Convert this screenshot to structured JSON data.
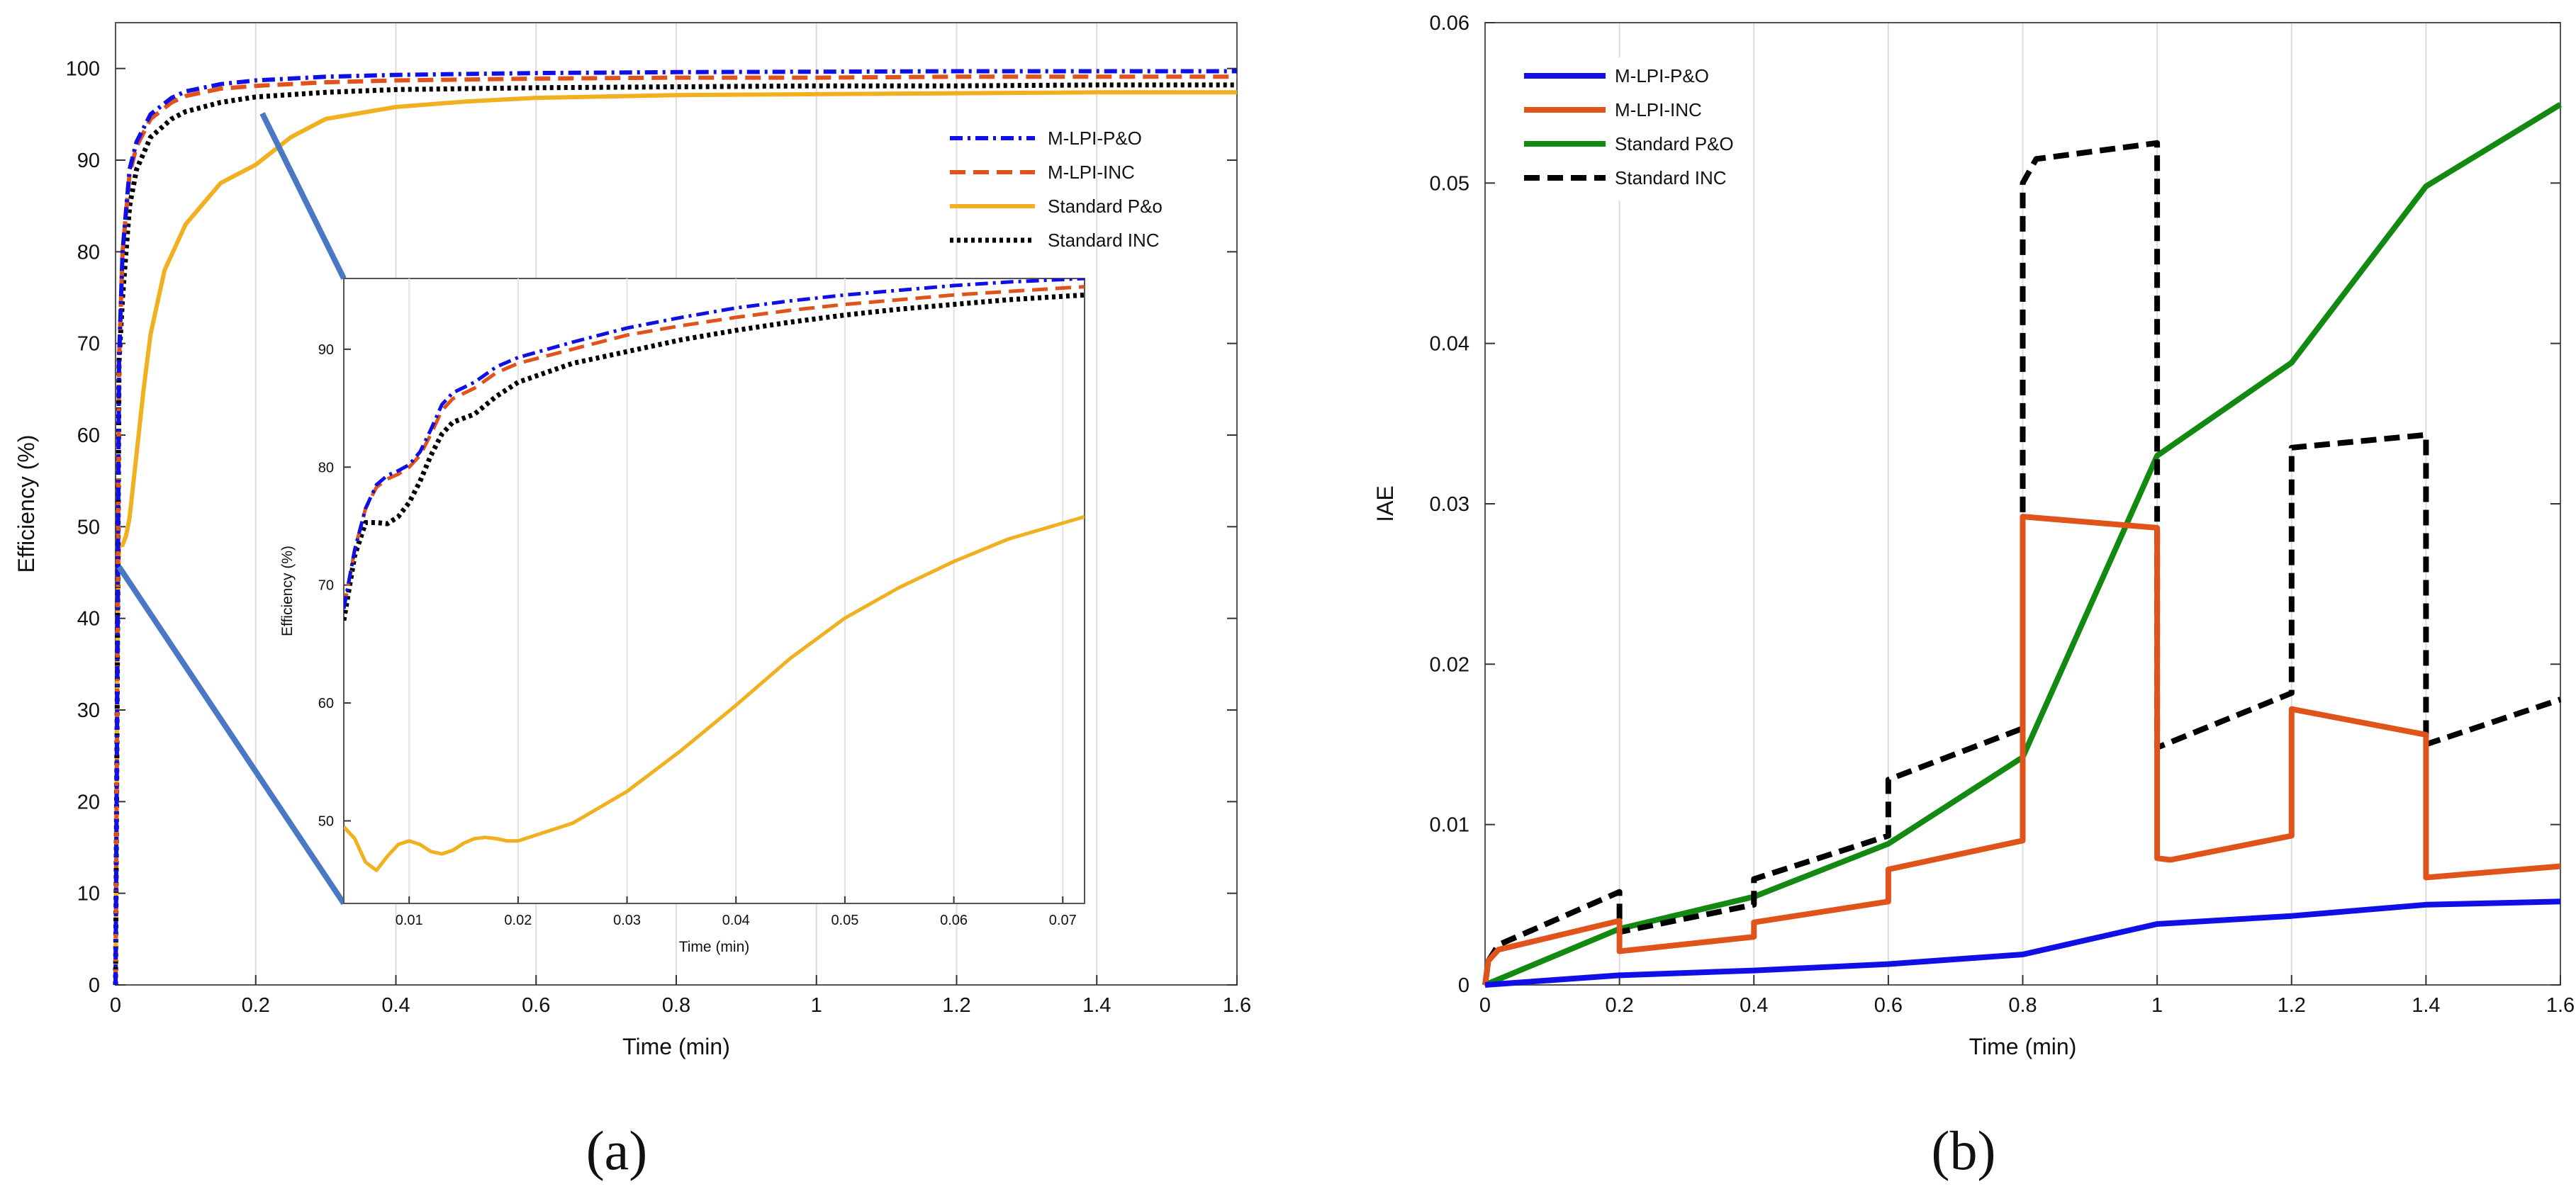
{
  "colors": {
    "mlpi_po": "#1010e6",
    "mlpi_inc": "#e0531b",
    "std_po_a": "#f0b020",
    "std_po_b": "#128a12",
    "std_inc": "#000000",
    "zoom_lines": "#4a78c4"
  },
  "chart_data": [
    {
      "type": "line",
      "caption": "(a)",
      "xlabel": "Time (min)",
      "ylabel": "Efficiency (%)",
      "xlim": [
        0,
        1.6
      ],
      "ylim": [
        0,
        105
      ],
      "xticks": [
        0,
        0.2,
        0.4,
        0.6,
        0.8,
        1,
        1.2,
        1.4,
        1.6
      ],
      "xtick_labels": [
        "0",
        "0.2",
        "0.4",
        "0.6",
        "0.8",
        "1",
        "1.2",
        "1.4",
        "1.6"
      ],
      "yticks": [
        0,
        10,
        20,
        30,
        40,
        50,
        60,
        70,
        80,
        90,
        100
      ],
      "ytick_labels": [
        "0",
        "10",
        "20",
        "30",
        "40",
        "50",
        "60",
        "70",
        "80",
        "90",
        "100"
      ],
      "legend": [
        "M-LPI-P&O",
        "M-LPI-INC",
        "Standard P&o",
        "Standard INC"
      ],
      "series": [
        {
          "name": "M-LPI-P&O",
          "style": "dashdot",
          "x": [
            0,
            0.003,
            0.005,
            0.01,
            0.02,
            0.03,
            0.05,
            0.08,
            0.1,
            0.15,
            0.2,
            0.3,
            0.4,
            0.6,
            0.8,
            1,
            1.2,
            1.4,
            1.6
          ],
          "y": [
            0,
            40,
            68,
            80,
            89,
            92,
            95,
            96.8,
            97.5,
            98.3,
            98.7,
            99.1,
            99.3,
            99.5,
            99.6,
            99.65,
            99.7,
            99.7,
            99.7
          ]
        },
        {
          "name": "M-LPI-INC",
          "style": "dashed",
          "x": [
            0,
            0.003,
            0.005,
            0.01,
            0.02,
            0.03,
            0.05,
            0.08,
            0.1,
            0.15,
            0.2,
            0.3,
            0.4,
            0.6,
            0.8,
            1,
            1.2,
            1.4,
            1.6
          ],
          "y": [
            0,
            40,
            68,
            80,
            88.5,
            91.5,
            94.5,
            96.3,
            97,
            97.8,
            98.1,
            98.5,
            98.7,
            98.9,
            99,
            99,
            99.1,
            99.1,
            99.1
          ]
        },
        {
          "name": "Standard P&o",
          "style": "solid",
          "x": [
            0,
            0.003,
            0.005,
            0.01,
            0.015,
            0.02,
            0.03,
            0.04,
            0.05,
            0.07,
            0.1,
            0.15,
            0.2,
            0.25,
            0.3,
            0.4,
            0.5,
            0.6,
            0.8,
            1,
            1.2,
            1.4,
            1.6
          ],
          "y": [
            0,
            40,
            48,
            48,
            49,
            51,
            58,
            65,
            71,
            78,
            83,
            87.5,
            89.5,
            92.5,
            94.5,
            95.8,
            96.4,
            96.8,
            97.1,
            97.2,
            97.3,
            97.4,
            97.4
          ]
        },
        {
          "name": "Standard INC",
          "style": "dotted",
          "x": [
            0,
            0.003,
            0.005,
            0.01,
            0.02,
            0.03,
            0.05,
            0.08,
            0.1,
            0.15,
            0.2,
            0.3,
            0.4,
            0.6,
            0.8,
            1,
            1.2,
            1.4,
            1.6
          ],
          "y": [
            0,
            40,
            68,
            75,
            85,
            89,
            92.5,
            94.5,
            95.3,
            96.3,
            96.9,
            97.4,
            97.7,
            97.9,
            98,
            98.1,
            98.1,
            98.2,
            98.2
          ]
        }
      ],
      "inset": {
        "xlabel": "Time (min)",
        "ylabel": "Efficiency (%)",
        "xlim": [
          0.004,
          0.072
        ],
        "ylim": [
          43,
          96
        ],
        "xticks": [
          0.01,
          0.02,
          0.03,
          0.04,
          0.05,
          0.06,
          0.07
        ],
        "xtick_labels": [
          "0.01",
          "0.02",
          "0.03",
          "0.04",
          "0.05",
          "0.06",
          "0.07"
        ],
        "yticks": [
          50,
          60,
          70,
          80,
          90
        ],
        "ytick_labels": [
          "50",
          "60",
          "70",
          "80",
          "90"
        ],
        "series": [
          {
            "name": "M-LPI-P&O",
            "x": [
              0.004,
              0.005,
              0.006,
              0.007,
              0.008,
              0.009,
              0.01,
              0.011,
              0.012,
              0.013,
              0.014,
              0.016,
              0.018,
              0.02,
              0.025,
              0.03,
              0.035,
              0.04,
              0.045,
              0.05,
              0.055,
              0.06,
              0.065,
              0.072
            ],
            "y": [
              68,
              73,
              76.5,
              78.5,
              79.3,
              79.7,
              80.2,
              81.3,
              83.2,
              85.3,
              86.3,
              87.2,
              88.5,
              89.3,
              90.6,
              91.8,
              92.7,
              93.5,
              94.1,
              94.6,
              95,
              95.4,
              95.7,
              96
            ]
          },
          {
            "name": "M-LPI-INC",
            "x": [
              0.004,
              0.005,
              0.006,
              0.007,
              0.008,
              0.009,
              0.01,
              0.011,
              0.012,
              0.013,
              0.014,
              0.016,
              0.018,
              0.02,
              0.025,
              0.03,
              0.035,
              0.04,
              0.045,
              0.05,
              0.055,
              0.06,
              0.065,
              0.072
            ],
            "y": [
              68,
              73,
              76.5,
              78.3,
              79,
              79.4,
              80,
              81,
              82.8,
              84.8,
              85.8,
              86.7,
              88,
              88.8,
              90,
              91.2,
              92,
              92.7,
              93.3,
              93.8,
              94.2,
              94.6,
              94.9,
              95.3
            ]
          },
          {
            "name": "Standard P&o",
            "x": [
              0.004,
              0.005,
              0.006,
              0.007,
              0.008,
              0.009,
              0.01,
              0.011,
              0.012,
              0.013,
              0.014,
              0.015,
              0.016,
              0.017,
              0.018,
              0.019,
              0.02,
              0.022,
              0.025,
              0.03,
              0.035,
              0.04,
              0.045,
              0.05,
              0.055,
              0.06,
              0.065,
              0.072
            ],
            "y": [
              49.5,
              48.5,
              46.5,
              45.8,
              47,
              48,
              48.3,
              48,
              47.4,
              47.2,
              47.5,
              48.1,
              48.5,
              48.6,
              48.5,
              48.3,
              48.3,
              48.9,
              49.8,
              52.5,
              56,
              59.8,
              63.8,
              67.2,
              69.8,
              72,
              73.9,
              75.8
            ]
          },
          {
            "name": "Standard INC",
            "x": [
              0.004,
              0.005,
              0.006,
              0.007,
              0.008,
              0.009,
              0.01,
              0.011,
              0.012,
              0.013,
              0.014,
              0.016,
              0.018,
              0.02,
              0.025,
              0.03,
              0.035,
              0.04,
              0.045,
              0.05,
              0.055,
              0.06,
              0.065,
              0.072
            ],
            "y": [
              67,
              72.5,
              75.3,
              75.3,
              75.2,
              75.8,
              77,
              78.8,
              81,
              82.8,
              83.8,
              84.5,
              86,
              87.2,
              88.8,
              89.8,
              90.8,
              91.6,
              92.3,
              92.9,
              93.4,
              93.8,
              94.2,
              94.6
            ]
          }
        ]
      }
    },
    {
      "type": "line",
      "caption": "(b)",
      "xlabel": "Time (min)",
      "ylabel": "IAE",
      "xlim": [
        0,
        1.6
      ],
      "ylim": [
        0,
        0.06
      ],
      "xticks": [
        0,
        0.2,
        0.4,
        0.6,
        0.8,
        1,
        1.2,
        1.4,
        1.6
      ],
      "xtick_labels": [
        "0",
        "0.2",
        "0.4",
        "0.6",
        "0.8",
        "1",
        "1.2",
        "1.4",
        "1.6"
      ],
      "yticks": [
        0,
        0.01,
        0.02,
        0.03,
        0.04,
        0.05,
        0.06
      ],
      "ytick_labels": [
        "0",
        "0.01",
        "0.02",
        "0.03",
        "0.04",
        "0.05",
        "0.06"
      ],
      "legend": [
        "M-LPI-P&O",
        "M-LPI-INC",
        "Standard P&O",
        "Standard INC"
      ],
      "series": [
        {
          "name": "M-LPI-P&O",
          "style": "solid",
          "x": [
            0,
            0.2,
            0.4,
            0.6,
            0.8,
            1,
            1.2,
            1.4,
            1.6
          ],
          "y": [
            0,
            0.0006,
            0.0009,
            0.0013,
            0.0019,
            0.0038,
            0.0043,
            0.005,
            0.0052
          ]
        },
        {
          "name": "M-LPI-INC",
          "style": "solid",
          "x": [
            0,
            0.005,
            0.02,
            0.2,
            0.2,
            0.4,
            0.4,
            0.6,
            0.6,
            0.8,
            0.8,
            1,
            1,
            1.02,
            1.2,
            1.2,
            1.4,
            1.4,
            1.6
          ],
          "y": [
            0,
            0.0015,
            0.0022,
            0.004,
            0.0021,
            0.003,
            0.0039,
            0.0052,
            0.0072,
            0.009,
            0.0292,
            0.0285,
            0.0079,
            0.0078,
            0.0093,
            0.0172,
            0.0156,
            0.0067,
            0.0074
          ]
        },
        {
          "name": "Standard P&O",
          "style": "solid",
          "x": [
            0,
            0.2,
            0.4,
            0.6,
            0.8,
            1,
            1.2,
            1.4,
            1.6
          ],
          "y": [
            0,
            0.0035,
            0.0055,
            0.0088,
            0.0142,
            0.033,
            0.0388,
            0.0498,
            0.0549
          ]
        },
        {
          "name": "Standard INC",
          "style": "dashed",
          "x": [
            0,
            0.005,
            0.02,
            0.2,
            0.2,
            0.4,
            0.4,
            0.6,
            0.6,
            0.8,
            0.8,
            0.82,
            1,
            1,
            1.2,
            1.2,
            1.4,
            1.4,
            1.6
          ],
          "y": [
            0,
            0.0015,
            0.0025,
            0.0058,
            0.0033,
            0.005,
            0.0066,
            0.0093,
            0.0128,
            0.016,
            0.05,
            0.0515,
            0.0525,
            0.0148,
            0.0182,
            0.0335,
            0.0343,
            0.015,
            0.0178
          ]
        }
      ]
    }
  ]
}
